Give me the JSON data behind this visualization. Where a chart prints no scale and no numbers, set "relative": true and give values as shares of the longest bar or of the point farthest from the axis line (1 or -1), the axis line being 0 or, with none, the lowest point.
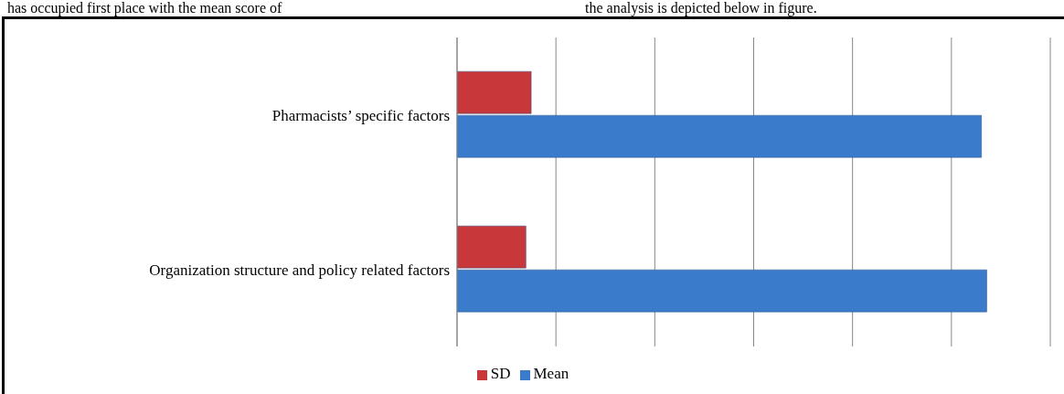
{
  "chart_data": {
    "type": "bar",
    "orientation": "horizontal",
    "relative": true,
    "categories": [
      "Pharmacists’ specific factors",
      "Organization structure and policy related factors"
    ],
    "series": [
      {
        "name": "SD",
        "color": "#c8383a",
        "values": [
          0.14,
          0.13
        ]
      },
      {
        "name": "Mean",
        "color": "#3a7bcb",
        "values": [
          0.99,
          1
        ]
      }
    ],
    "grid": "x",
    "legend": "bottom",
    "annotations": [
      "has occupied first place with the mean score of",
      "the analysis is depicted below in figure."
    ]
  }
}
